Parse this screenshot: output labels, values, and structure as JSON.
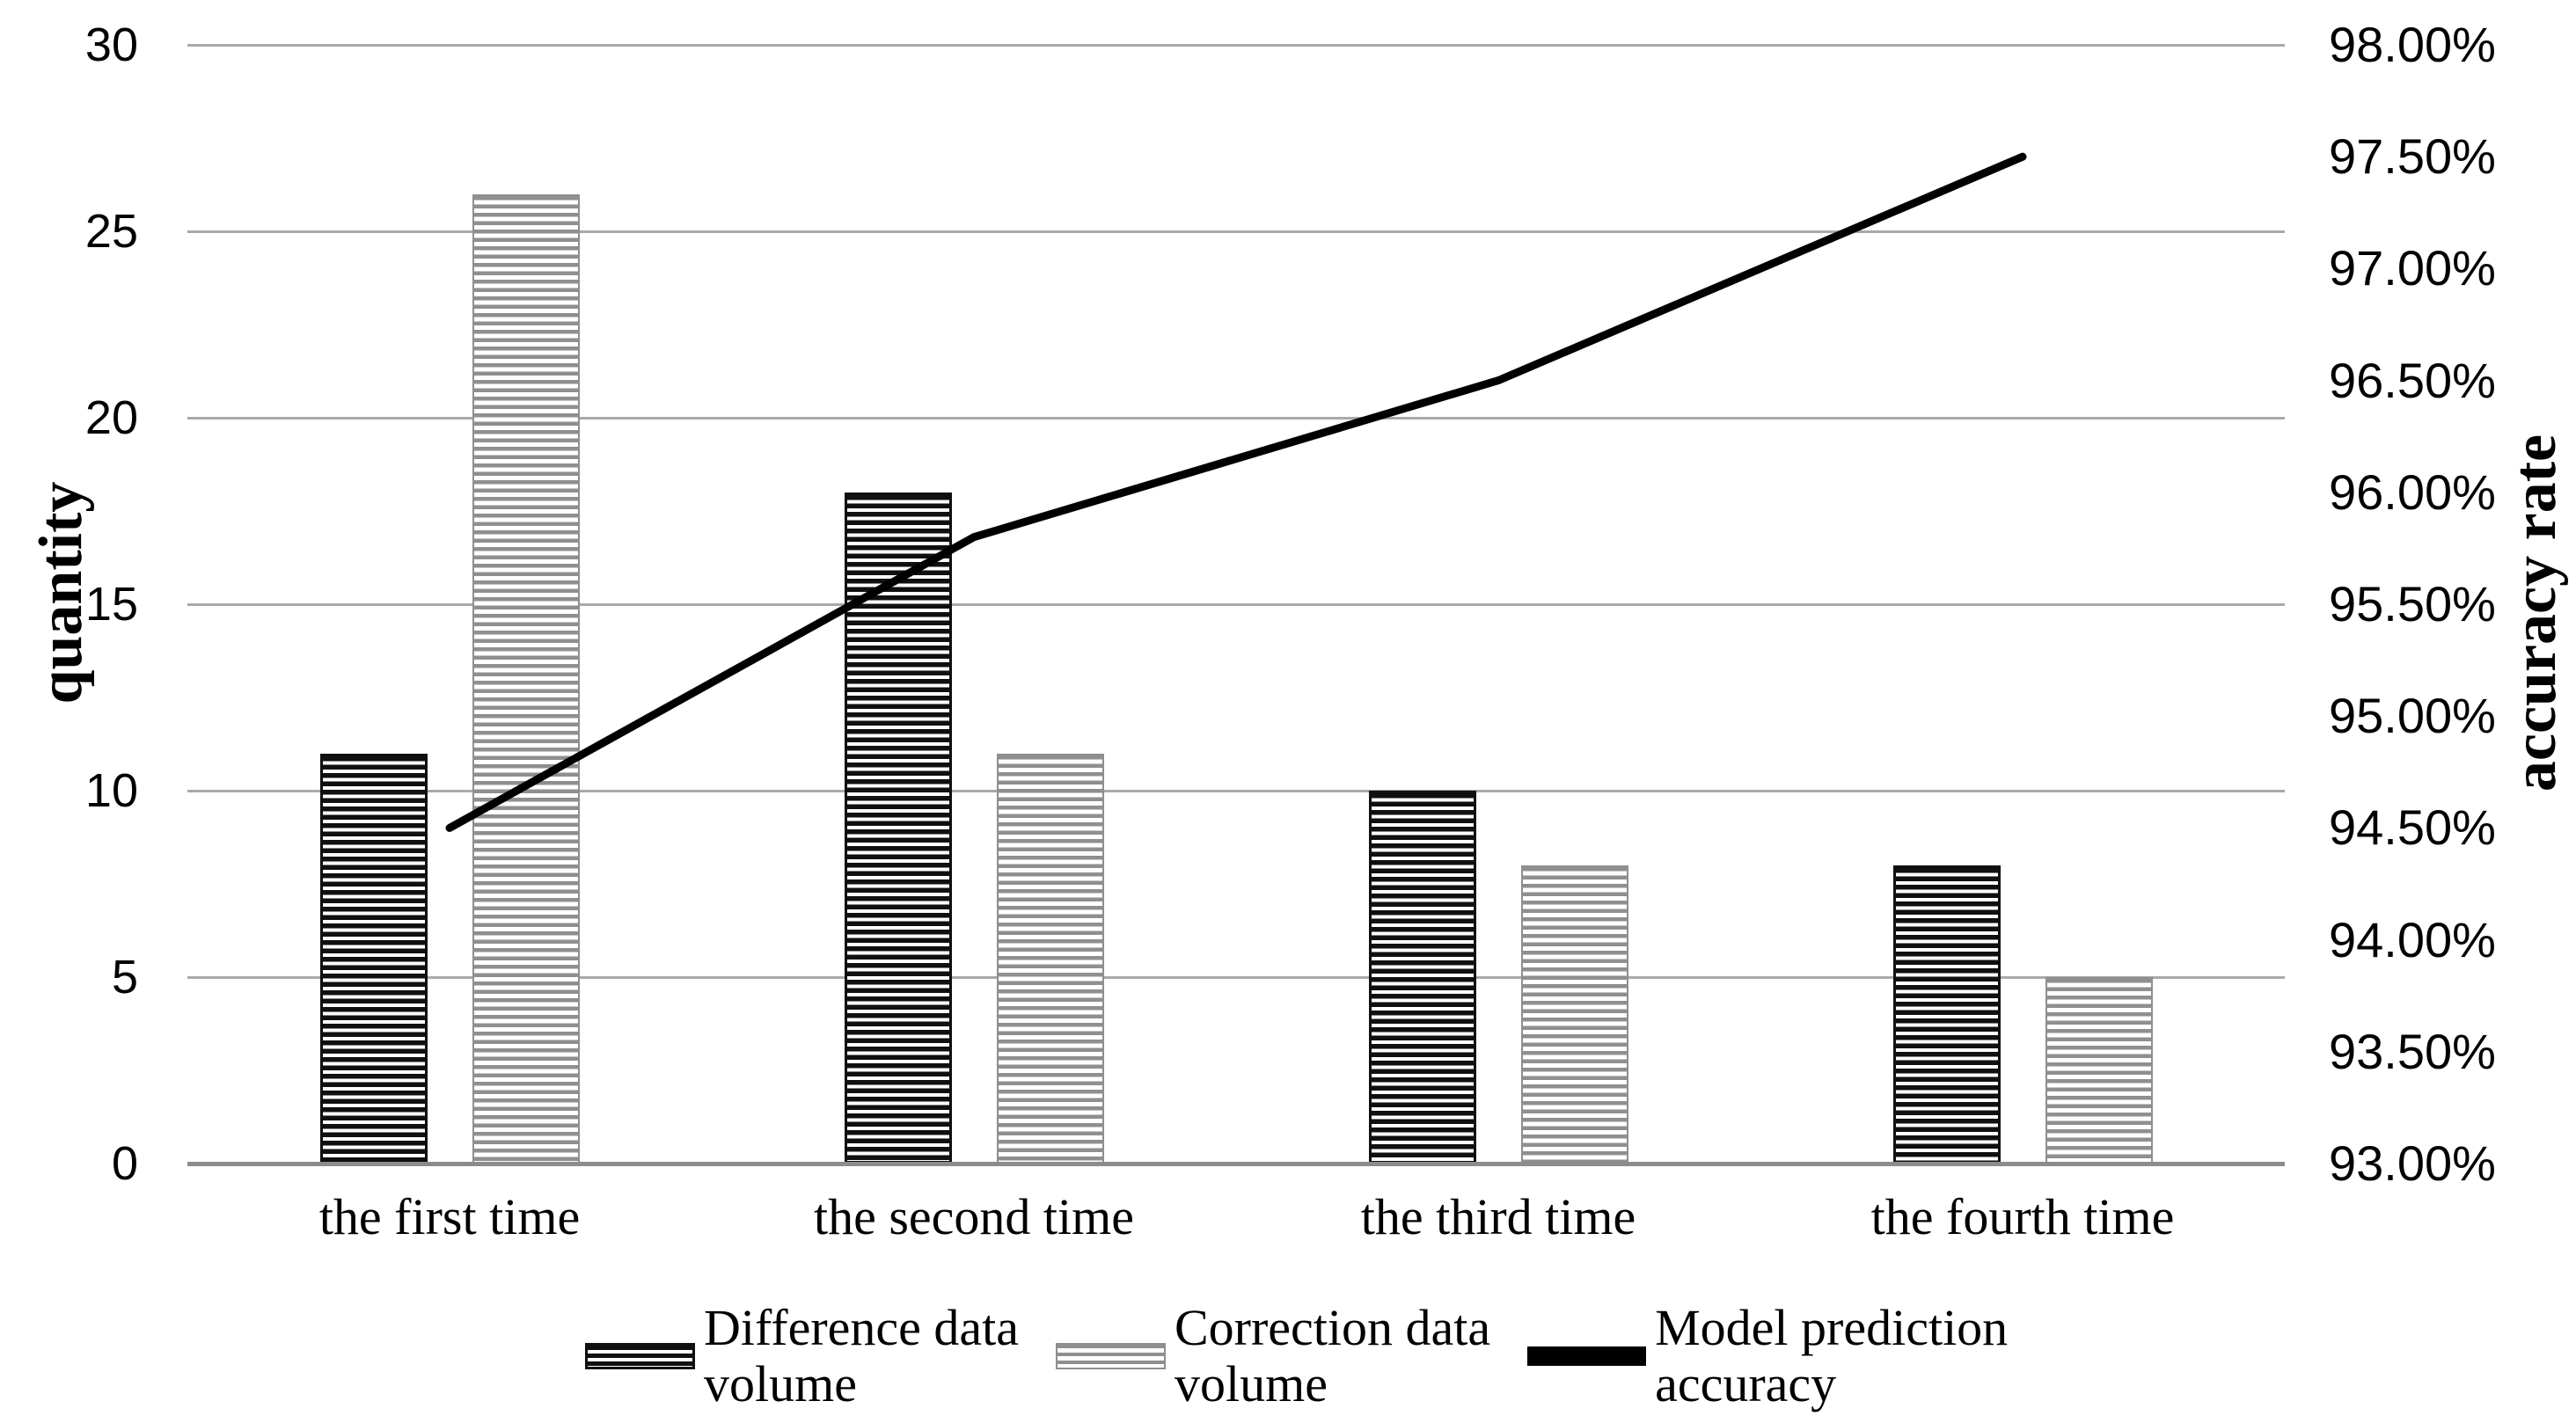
{
  "chart_data": {
    "type": "combo-bar-line",
    "title": "",
    "categories": [
      "the first time",
      "the second time",
      "the third time",
      "the fourth time"
    ],
    "series": [
      {
        "name": "Difference data volume",
        "type": "bar",
        "axis": "left",
        "values": [
          11,
          18,
          10,
          8
        ],
        "style": "dark-horizontal-stripes"
      },
      {
        "name": "Correction data volume",
        "type": "bar",
        "axis": "left",
        "values": [
          26,
          11,
          8,
          5
        ],
        "style": "light-horizontal-stripes"
      },
      {
        "name": "Model prediction accuracy",
        "type": "line",
        "axis": "right",
        "values": [
          94.5,
          95.8,
          96.5,
          97.5
        ]
      }
    ],
    "left_axis": {
      "title": "quantity",
      "min": 0,
      "max": 30,
      "step": 5,
      "tick_labels": [
        "30",
        "25",
        "20",
        "15",
        "10",
        "5",
        "0"
      ]
    },
    "right_axis": {
      "title": "accuracy rate",
      "min": 93,
      "max": 98,
      "step": 0.5,
      "tick_labels": [
        "98.00%",
        "97.50%",
        "97.00%",
        "96.50%",
        "96.00%",
        "95.50%",
        "95.00%",
        "94.50%",
        "94.00%",
        "93.50%",
        "93.00%"
      ]
    },
    "legend": [
      {
        "lines": [
          "Difference data",
          "volume"
        ],
        "swatch": "bar-dark"
      },
      {
        "lines": [
          "Correction data",
          "volume"
        ],
        "swatch": "bar-light"
      },
      {
        "lines": [
          "Model prediction",
          "accuracy"
        ],
        "swatch": "line"
      }
    ],
    "grid": {
      "gridlines_on": true,
      "legend_position": "bottom"
    },
    "colors": {
      "background": "#ffffff",
      "bar_dark_stripe": "#101010",
      "bar_light_stripe": "#8f8f8f",
      "line": "#000000",
      "gridline": "#a9a9a9",
      "baseline": "#8c8c8c",
      "text": "#000000"
    }
  }
}
